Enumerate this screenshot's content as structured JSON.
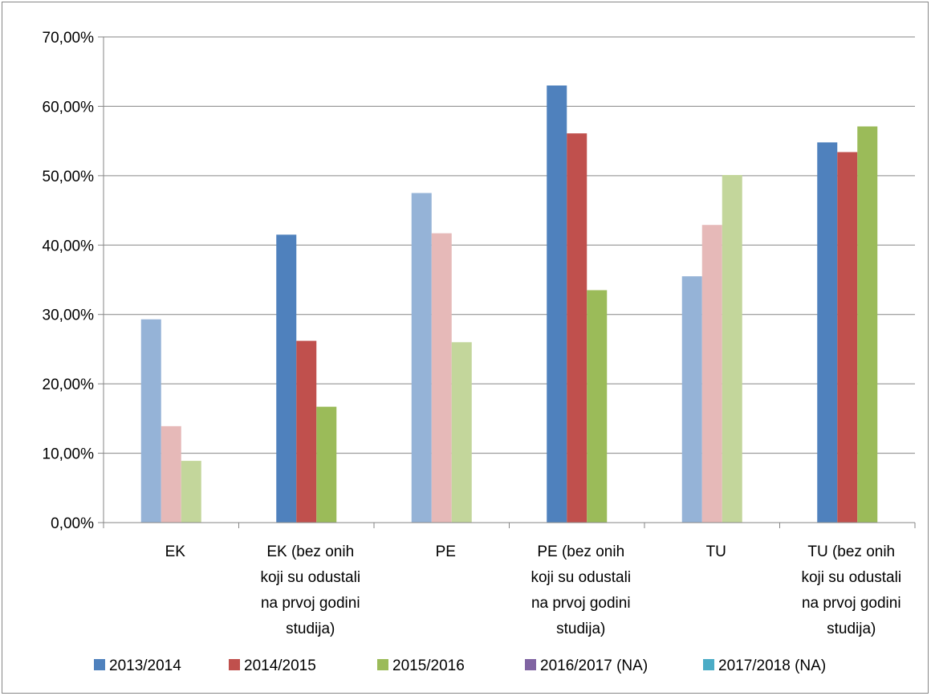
{
  "chart_data": {
    "type": "bar",
    "title": "",
    "xlabel": "",
    "ylabel": "",
    "ylim": [
      0,
      0.7
    ],
    "y_tick_labels": [
      "0,00%",
      "10,00%",
      "20,00%",
      "30,00%",
      "40,00%",
      "50,00%",
      "60,00%",
      "70,00%"
    ],
    "grid": true,
    "legend_position": "bottom",
    "categories": [
      "EK",
      "EK (bez onih koji su odustali na prvoj godini studija)",
      "PE",
      "PE (bez onih koji su odustali na prvoj godini studija)",
      "TU",
      "TU (bez onih koji su odustali na prvoj godini studija)"
    ],
    "category_label_lines": [
      [
        "EK"
      ],
      [
        "EK (bez onih",
        "koji su odustali",
        "na prvoj godini",
        "studija)"
      ],
      [
        "PE"
      ],
      [
        "PE (bez onih",
        "koji su odustali",
        "na prvoj godini",
        "studija)"
      ],
      [
        "TU"
      ],
      [
        "TU (bez onih",
        "koji su odustali",
        "na prvoj godini",
        "studija)"
      ]
    ],
    "series": [
      {
        "name": "2013/2014",
        "color": "#4F81BD",
        "faded_color": "#95B3D7",
        "values": [
          0.293,
          0.415,
          0.475,
          0.63,
          0.355,
          0.548
        ]
      },
      {
        "name": "2014/2015",
        "color": "#C0504D",
        "faded_color": "#E6B9B8",
        "values": [
          0.139,
          0.262,
          0.417,
          0.561,
          0.429,
          0.534
        ]
      },
      {
        "name": "2015/2016",
        "color": "#9BBB59",
        "faded_color": "#C3D69B",
        "values": [
          0.089,
          0.167,
          0.26,
          0.335,
          0.501,
          0.571
        ]
      },
      {
        "name": "2016/2017 (NA)",
        "color": "#8064A2",
        "faded_color": "#8064A2",
        "values": [
          null,
          null,
          null,
          null,
          null,
          null
        ]
      },
      {
        "name": "2017/2018 (NA)",
        "color": "#4BACC6",
        "faded_color": "#4BACC6",
        "values": [
          null,
          null,
          null,
          null,
          null,
          null
        ]
      }
    ],
    "faded_categories": [
      0,
      2,
      4
    ]
  }
}
